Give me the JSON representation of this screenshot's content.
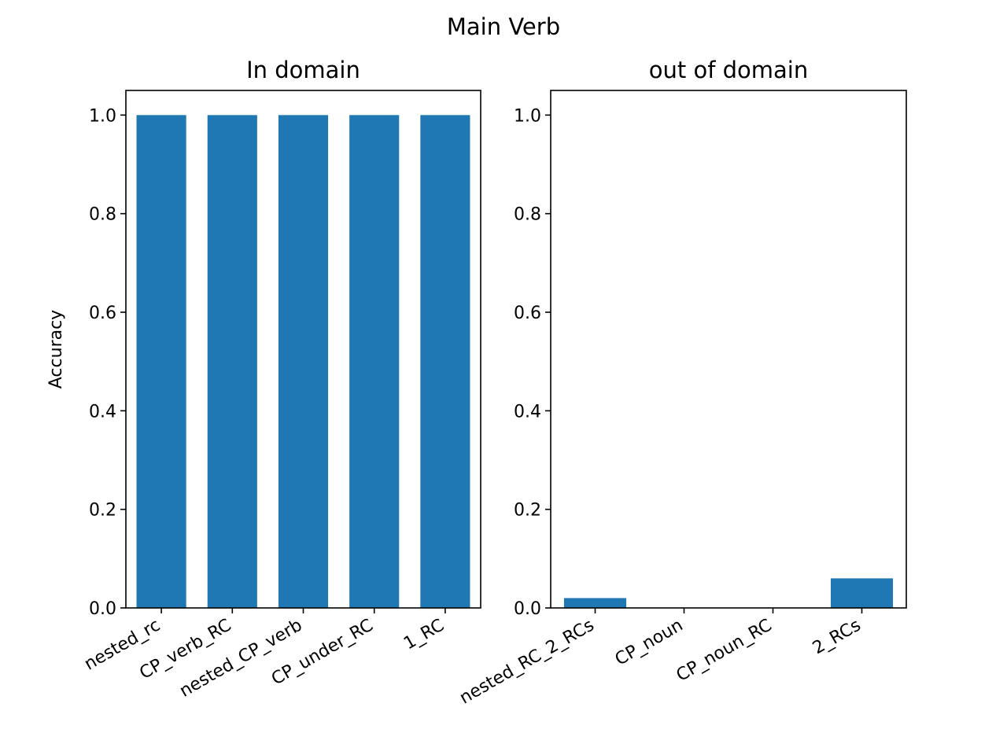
{
  "figure": {
    "suptitle": "Main Verb"
  },
  "chart_data": [
    {
      "type": "bar",
      "title": "In domain",
      "xlabel": "",
      "ylabel": "Accuracy",
      "ylim": [
        0,
        1.05
      ],
      "yticks": [
        "0.0",
        "0.2",
        "0.4",
        "0.6",
        "0.8",
        "1.0"
      ],
      "categories": [
        "nested_rc",
        "CP_verb_RC",
        "nested_CP_verb",
        "CP_under_RC",
        "1_RC"
      ],
      "values": [
        1.0,
        1.0,
        1.0,
        1.0,
        1.0
      ],
      "color": "#1f77b4",
      "grid": false
    },
    {
      "type": "bar",
      "title": "out of domain",
      "xlabel": "",
      "ylabel": "",
      "ylim": [
        0,
        1.05
      ],
      "yticks": [
        "0.0",
        "0.2",
        "0.4",
        "0.6",
        "0.8",
        "1.0"
      ],
      "categories": [
        "nested_RC_2_RCs",
        "CP_noun",
        "CP_noun_RC",
        "2_RCs"
      ],
      "values": [
        0.02,
        0.0,
        0.0,
        0.06
      ],
      "color": "#1f77b4",
      "grid": false
    }
  ]
}
